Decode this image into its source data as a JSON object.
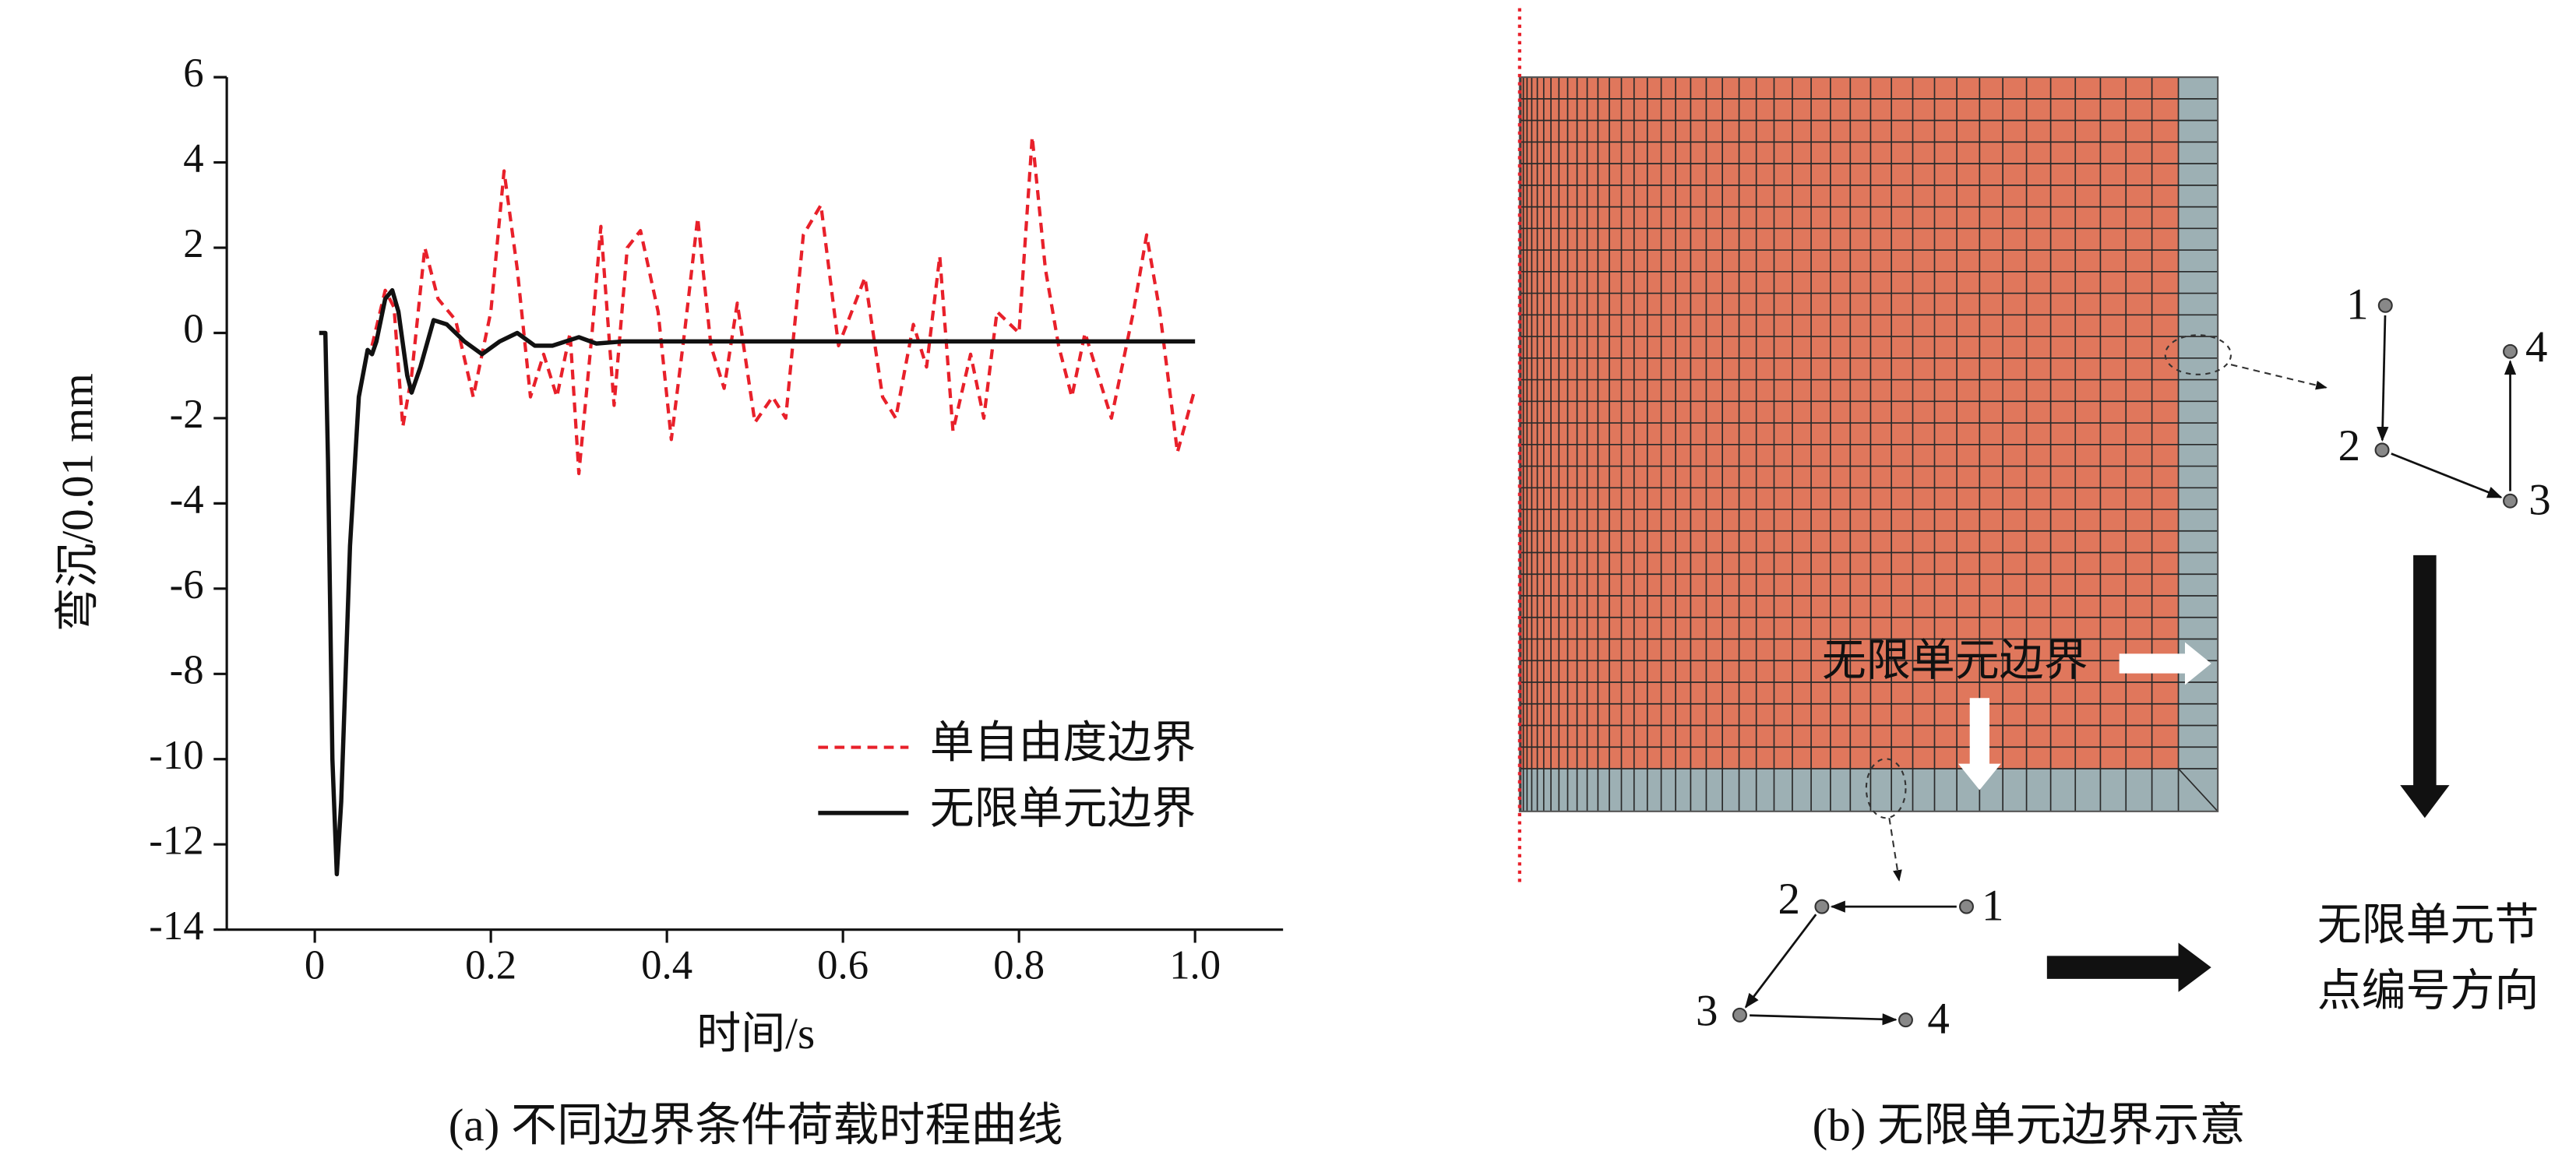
{
  "chart_data": {
    "type": "line",
    "caption": "(a) 不同边界条件荷载时程曲线",
    "xlabel": "时间/s",
    "ylabel": "弯沉/0.01 mm",
    "xlim": [
      -0.1,
      1.1
    ],
    "xticks": [
      0,
      0.2,
      0.4,
      0.6,
      0.8,
      {
        "value": 1.0,
        "label": "1.0"
      }
    ],
    "ylim": [
      -14,
      6
    ],
    "yticks": [
      -14,
      -12,
      -10,
      -8,
      -6,
      -4,
      -2,
      0,
      2,
      4,
      6
    ],
    "legend": "lower right",
    "series": [
      {
        "name": "单自由度边界",
        "color": "#e8202a",
        "dash": true,
        "x": [
          0.065,
          0.08,
          0.09,
          0.1,
          0.11,
          0.125,
          0.14,
          0.16,
          0.18,
          0.2,
          0.215,
          0.23,
          0.245,
          0.26,
          0.275,
          0.29,
          0.3,
          0.315,
          0.325,
          0.34,
          0.355,
          0.37,
          0.39,
          0.405,
          0.42,
          0.435,
          0.45,
          0.465,
          0.48,
          0.5,
          0.52,
          0.535,
          0.555,
          0.575,
          0.595,
          0.61,
          0.625,
          0.645,
          0.66,
          0.68,
          0.695,
          0.71,
          0.725,
          0.745,
          0.76,
          0.775,
          0.8,
          0.815,
          0.83,
          0.845,
          0.86,
          0.875,
          0.89,
          0.905,
          0.93,
          0.945,
          0.96,
          0.98,
          1.0
        ],
        "values": [
          -0.3,
          1.0,
          0.6,
          -2.2,
          -1,
          2.0,
          0.8,
          0.3,
          -1.5,
          0.5,
          3.8,
          1.5,
          -1.5,
          -0.5,
          -1.5,
          0,
          -3.3,
          0,
          2.5,
          -1.7,
          2.0,
          2.4,
          0.5,
          -2.5,
          0,
          2.7,
          -0.3,
          -1.3,
          0.7,
          -2.1,
          -1.5,
          -2,
          2.3,
          3.0,
          -0.3,
          0.5,
          1.3,
          -1.5,
          -2.0,
          0.2,
          -0.8,
          1.8,
          -2.3,
          -0.5,
          -2.0,
          0.5,
          0,
          4.6,
          1.5,
          -0.3,
          -1.5,
          0,
          -1,
          -2,
          0.5,
          2.3,
          0.5,
          -2.8,
          -1.3
        ]
      },
      {
        "name": "无限单元边界",
        "color": "#111111",
        "dash": false,
        "x": [
          0.005,
          0.012,
          0.015,
          0.02,
          0.025,
          0.03,
          0.04,
          0.05,
          0.06,
          0.065,
          0.07,
          0.08,
          0.088,
          0.095,
          0.105,
          0.11,
          0.12,
          0.135,
          0.15,
          0.17,
          0.19,
          0.21,
          0.23,
          0.25,
          0.27,
          0.3,
          0.32,
          0.35,
          0.4,
          0.5,
          0.6,
          0.8,
          1.0
        ],
        "values": [
          0,
          0,
          -3,
          -10,
          -12.7,
          -11,
          -5,
          -1.5,
          -0.4,
          -0.5,
          -0.2,
          0.8,
          1.0,
          0.5,
          -1,
          -1.4,
          -0.8,
          0.3,
          0.2,
          -0.2,
          -0.5,
          -0.2,
          0,
          -0.3,
          -0.3,
          -0.1,
          -0.25,
          -0.2,
          -0.2,
          -0.2,
          -0.2,
          -0.2,
          -0.2
        ]
      }
    ]
  },
  "diagram": {
    "caption": "(b) 无限单元边界示意",
    "boundary_label": "无限单元边界",
    "right_nodes": [
      "1",
      "2",
      "3",
      "4"
    ],
    "bottom_nodes": [
      "1",
      "2",
      "3",
      "4"
    ],
    "note": [
      "无限单元节",
      "点编号方向"
    ]
  }
}
